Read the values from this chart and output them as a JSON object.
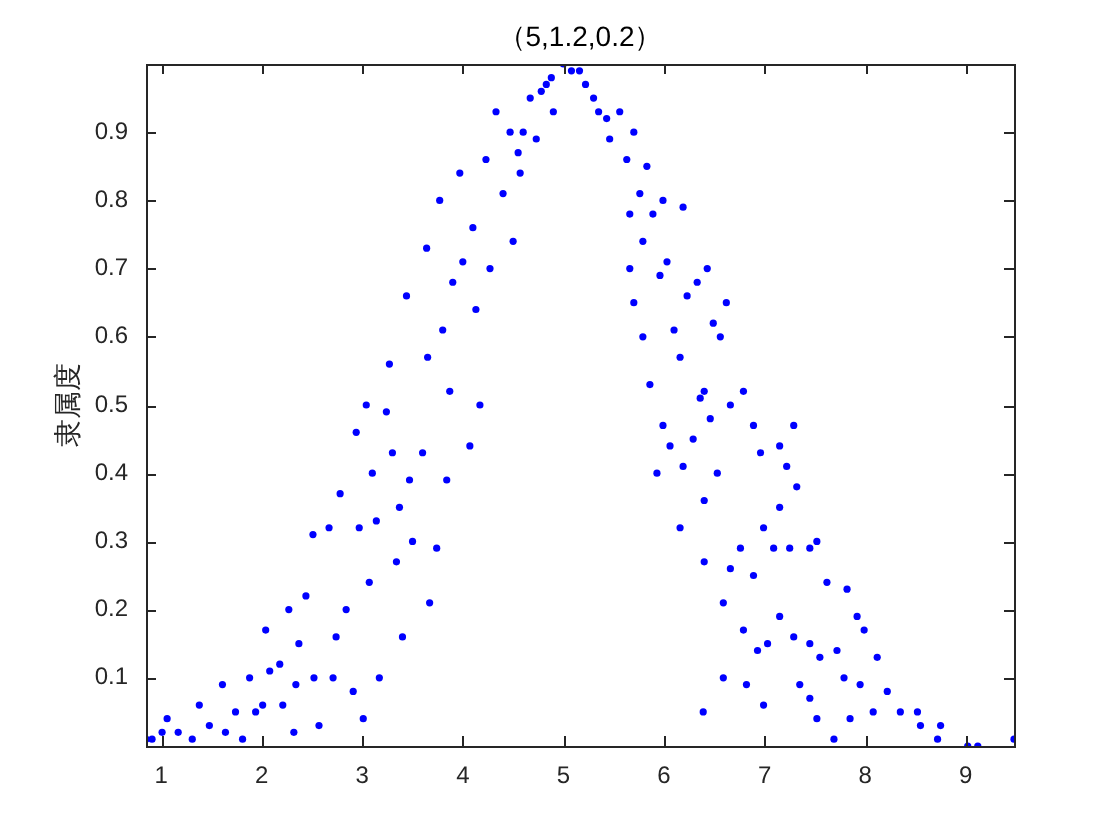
{
  "chart_data": {
    "type": "scatter",
    "title": "（5,1.2,0.2）",
    "ylabel": "隶属度",
    "x": [
      0.85,
      0.91,
      1.01,
      1.06,
      1.17,
      1.31,
      1.38,
      1.48,
      1.61,
      1.64,
      1.74,
      1.81,
      1.88,
      1.94,
      2.01,
      2.04,
      2.08,
      2.18,
      2.21,
      2.27,
      2.32,
      2.34,
      2.37,
      2.44,
      2.52,
      2.57,
      2.51,
      2.67,
      2.71,
      2.74,
      2.78,
      2.84,
      2.91,
      2.94,
      3.01,
      2.97,
      3.04,
      3.07,
      3.1,
      3.14,
      3.17,
      3.24,
      3.27,
      3.3,
      3.34,
      3.37,
      3.4,
      3.44,
      3.47,
      3.5,
      3.6,
      3.64,
      3.65,
      3.67,
      3.74,
      3.77,
      3.8,
      3.84,
      3.87,
      3.9,
      3.97,
      4.0,
      4.07,
      4.1,
      4.13,
      4.17,
      4.23,
      4.27,
      4.33,
      4.4,
      4.47,
      4.5,
      4.57,
      4.67,
      4.73,
      4.83,
      4.9,
      5.0,
      4.55,
      4.6,
      4.78,
      4.88,
      5.08,
      5.22,
      5.35,
      5.16,
      5.3,
      5.43,
      5.46,
      5.56,
      5.63,
      5.7,
      5.66,
      5.76,
      5.83,
      5.79,
      5.89,
      5.99,
      5.96,
      6.03,
      6.19,
      5.66,
      5.7,
      5.79,
      5.86,
      6.1,
      6.16,
      6.23,
      6.33,
      6.43,
      6.49,
      6.62,
      6.36,
      6.56,
      5.99,
      5.93,
      6.06,
      6.19,
      6.29,
      6.4,
      6.46,
      6.53,
      6.66,
      6.79,
      6.89,
      6.96,
      7.15,
      7.29,
      7.22,
      7.32,
      6.16,
      6.4,
      6.4,
      6.59,
      6.66,
      6.76,
      6.89,
      6.99,
      7.09,
      7.15,
      7.25,
      7.45,
      7.52,
      7.62,
      7.82,
      6.79,
      6.93,
      7.03,
      7.15,
      7.29,
      7.45,
      7.55,
      7.72,
      7.92,
      7.99,
      8.12,
      6.59,
      6.82,
      6.99,
      6.39,
      7.35,
      7.45,
      7.52,
      7.69,
      7.79,
      7.85,
      7.95,
      8.08,
      8.22,
      8.35,
      8.52,
      8.55,
      8.75,
      8.72,
      9.02,
      9.12,
      9.48
    ],
    "values": [
      0.01,
      0.01,
      0.02,
      0.04,
      0.02,
      0.01,
      0.06,
      0.03,
      0.09,
      0.02,
      0.05,
      0.01,
      0.1,
      0.05,
      0.06,
      0.17,
      0.11,
      0.12,
      0.06,
      0.2,
      0.02,
      0.09,
      0.15,
      0.22,
      0.1,
      0.03,
      0.31,
      0.32,
      0.1,
      0.16,
      0.37,
      0.2,
      0.08,
      0.46,
      0.04,
      0.32,
      0.5,
      0.24,
      0.4,
      0.33,
      0.1,
      0.49,
      0.56,
      0.43,
      0.27,
      0.35,
      0.16,
      0.66,
      0.39,
      0.3,
      0.43,
      0.73,
      0.57,
      0.21,
      0.29,
      0.8,
      0.61,
      0.39,
      0.52,
      0.68,
      0.84,
      0.71,
      0.44,
      0.76,
      0.64,
      0.5,
      0.86,
      0.7,
      0.93,
      0.81,
      0.9,
      0.74,
      0.84,
      0.95,
      0.89,
      0.97,
      0.93,
      1.0,
      0.87,
      0.9,
      0.96,
      0.98,
      0.99,
      0.97,
      0.93,
      0.99,
      0.95,
      0.92,
      0.89,
      0.93,
      0.86,
      0.9,
      0.78,
      0.81,
      0.85,
      0.74,
      0.78,
      0.8,
      0.69,
      0.71,
      0.79,
      0.7,
      0.65,
      0.6,
      0.53,
      0.61,
      0.57,
      0.66,
      0.68,
      0.7,
      0.62,
      0.65,
      0.51,
      0.6,
      0.47,
      0.4,
      0.44,
      0.41,
      0.45,
      0.52,
      0.48,
      0.4,
      0.5,
      0.52,
      0.47,
      0.43,
      0.44,
      0.47,
      0.41,
      0.38,
      0.32,
      0.36,
      0.27,
      0.21,
      0.26,
      0.29,
      0.25,
      0.32,
      0.29,
      0.35,
      0.29,
      0.29,
      0.3,
      0.24,
      0.23,
      0.17,
      0.14,
      0.15,
      0.19,
      0.16,
      0.15,
      0.13,
      0.14,
      0.19,
      0.17,
      0.13,
      0.1,
      0.09,
      0.06,
      0.05,
      0.09,
      0.07,
      0.04,
      0.01,
      0.1,
      0.04,
      0.09,
      0.05,
      0.08,
      0.05,
      0.05,
      0.03,
      0.03,
      0.01,
      0.0,
      0.0,
      0.01
    ],
    "color": "#0000ff",
    "marker": "circle",
    "xlim": [
      0.85,
      9.48
    ],
    "ylim": [
      0,
      1
    ],
    "xticks": [
      1,
      2,
      3,
      4,
      5,
      6,
      7,
      8,
      9
    ],
    "yticks": [
      0.1,
      0.2,
      0.3,
      0.4,
      0.5,
      0.6,
      0.7,
      0.8,
      0.9
    ],
    "grid": false
  }
}
